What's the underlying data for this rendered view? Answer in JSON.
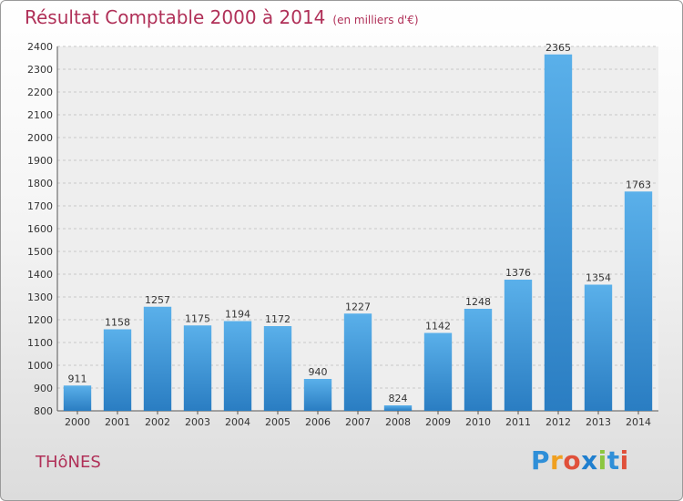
{
  "title": "Résultat Comptable 2000 à 2014",
  "subtitle": "(en milliers d'€)",
  "town": "THôNES",
  "logo": {
    "text": "Proxiti",
    "letters": [
      {
        "ch": "P",
        "color": "#2f8fd8"
      },
      {
        "ch": "r",
        "color": "#f0a020"
      },
      {
        "ch": "o",
        "color": "#e0503a"
      },
      {
        "ch": "x",
        "color": "#1f7fcf"
      },
      {
        "ch": "i",
        "color": "#8cc63f"
      },
      {
        "ch": "t",
        "color": "#2f8fd8"
      },
      {
        "ch": "i",
        "color": "#e0503a"
      }
    ]
  },
  "chart_data": {
    "type": "bar",
    "categories": [
      "2000",
      "2001",
      "2002",
      "2003",
      "2004",
      "2005",
      "2006",
      "2007",
      "2008",
      "2009",
      "2010",
      "2011",
      "2012",
      "2013",
      "2014"
    ],
    "values": [
      911,
      1158,
      1257,
      1175,
      1194,
      1172,
      940,
      1227,
      824,
      1142,
      1248,
      1376,
      2365,
      1354,
      1763
    ],
    "ylim": [
      800,
      2400
    ],
    "yticks": [
      800,
      900,
      1000,
      1100,
      1200,
      1300,
      1400,
      1500,
      1600,
      1700,
      1800,
      1900,
      2000,
      2100,
      2200,
      2300,
      2400
    ],
    "grid": true,
    "bar_color_top": "#5ab0ea",
    "bar_color_bottom": "#2a7dc2"
  }
}
